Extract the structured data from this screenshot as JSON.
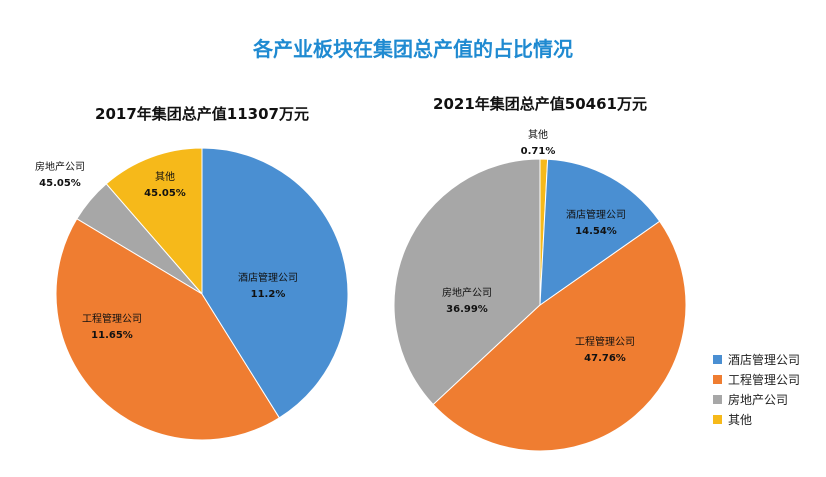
{
  "title": "各产业板块在集团总产值的占比情况",
  "legend": [
    "酒店管理公司",
    "工程管理公司",
    "房地产公司",
    "其他"
  ],
  "colors": {
    "酒店管理公司": "#4a8fd2",
    "工程管理公司": "#ef7d31",
    "房地产公司": "#a7a7a7",
    "其他": "#f6b91a"
  },
  "chart_data": [
    {
      "type": "pie",
      "title": "2017年集团总产值11307万元",
      "slices": [
        {
          "label": "酒店管理公司",
          "value": 11.2,
          "text": "11.2%"
        },
        {
          "label": "工程管理公司",
          "value": 11.65,
          "text": "11.65%"
        },
        {
          "label": "房地产公司",
          "value": 45.05,
          "text": "45.05%"
        },
        {
          "label": "其他",
          "value": 45.05,
          "text": "45.05%"
        }
      ]
    },
    {
      "type": "pie",
      "title": "2021年集团总产值50461万元",
      "slices": [
        {
          "label": "酒店管理公司",
          "value": 14.54,
          "text": "14.54%"
        },
        {
          "label": "工程管理公司",
          "value": 47.76,
          "text": "47.76%"
        },
        {
          "label": "房地产公司",
          "value": 36.99,
          "text": "36.99%"
        },
        {
          "label": "其他",
          "value": 0.71,
          "text": "0.71%"
        }
      ]
    }
  ]
}
